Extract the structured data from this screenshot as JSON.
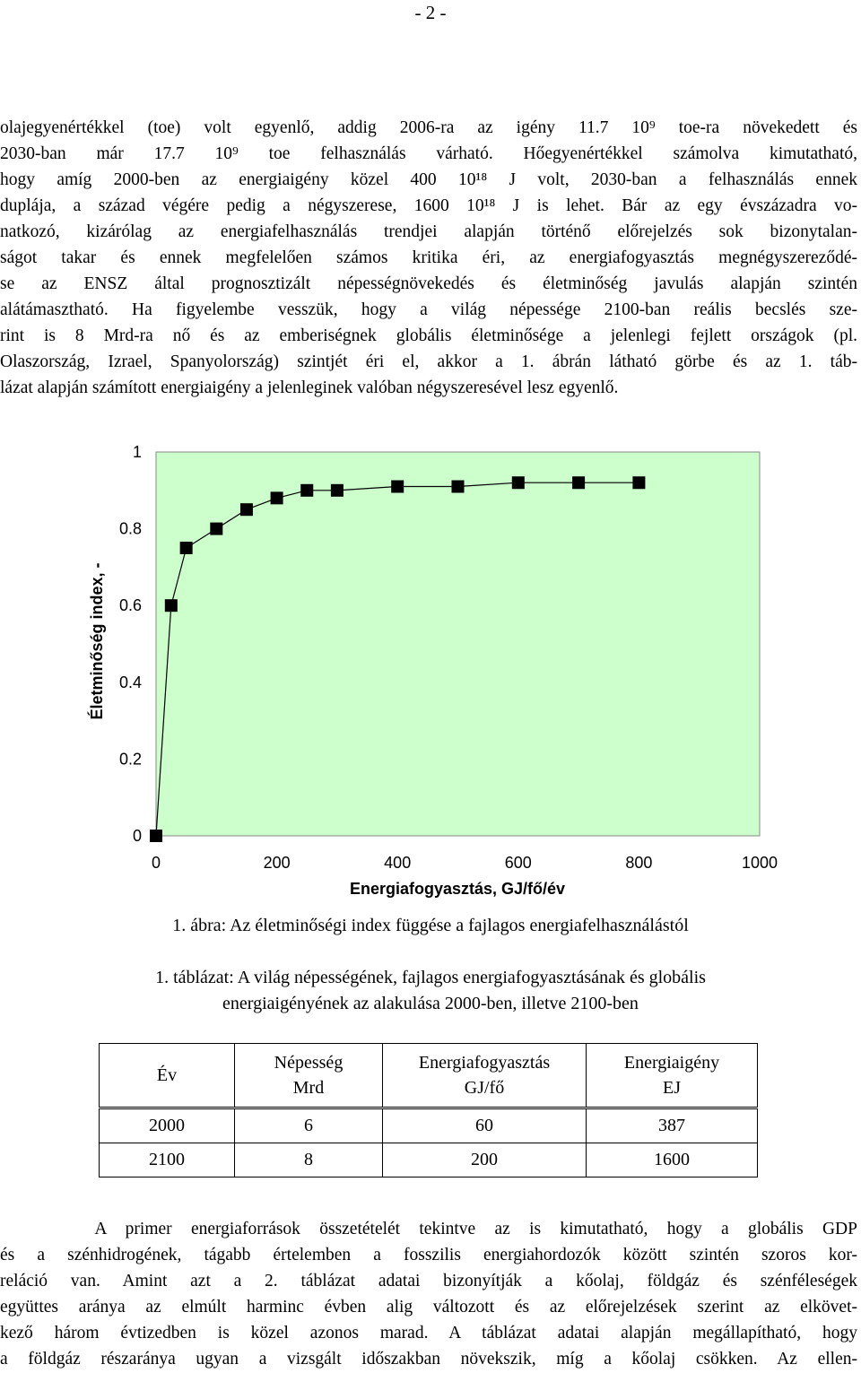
{
  "page_number": "- 2 -",
  "paragraph1": [
    "olajegyenértékkel (toe) volt egyenlő, addig 2006-ra az igény 11.7 10⁹ toe-ra növekedett és",
    "2030-ban már 17.7 10⁹ toe felhasználás várható. Hőegyenértékkel számolva kimutatható,",
    "hogy amíg 2000-ben az energiaigény közel 400 10¹⁸ J volt, 2030-ban a felhasználás ennek",
    "duplája, a század végére pedig a négyszerese, 1600 10¹⁸ J is lehet. Bár az egy évszázadra vo-",
    "natkozó, kizárólag az energiafelhasználás trendjei alapján történő előrejelzés sok bizonytalan-",
    "ságot takar és ennek megfelelően számos kritika éri, az energiafogyasztás megnégyszereződé-",
    "se az ENSZ által prognosztizált népességnövekedés és életminőség javulás alapján szintén",
    "alátámasztható. Ha figyelembe vesszük, hogy a világ népessége 2100-ban reális becslés sze-",
    "rint is 8 Mrd-ra nő és az emberiségnek globális életminősége a jelenlegi fejlett országok (pl.",
    "Olaszország, Izrael, Spanyolország) szintjét éri el, akkor a 1. ábrán látható görbe és az 1. táb-",
    "lázat alapján számított energiaigény a jelenleginek valóban négyszeresével lesz egyenlő."
  ],
  "chart_data": {
    "type": "line",
    "title": "",
    "xlabel": "Energiafogyasztás, GJ/fő/év",
    "ylabel": "Életminőség index, -",
    "xlim": [
      0,
      1000
    ],
    "ylim": [
      0,
      1
    ],
    "x_ticks": [
      "0",
      "200",
      "400",
      "600",
      "800",
      "1000"
    ],
    "y_ticks": [
      "0",
      "0.2",
      "0.4",
      "0.6",
      "0.8",
      "1"
    ],
    "x_tick_values": [
      0,
      200,
      400,
      600,
      800,
      1000
    ],
    "y_tick_values": [
      0,
      0.2,
      0.4,
      0.6,
      0.8,
      1
    ],
    "grid": false,
    "plot_background": "#ccffcc",
    "marker": "square",
    "series": [
      {
        "x": [
          0,
          25,
          50,
          100,
          150,
          200,
          250,
          300,
          400,
          500,
          600,
          700,
          800
        ],
        "y": [
          0.0,
          0.6,
          0.75,
          0.8,
          0.85,
          0.88,
          0.9,
          0.9,
          0.91,
          0.91,
          0.92,
          0.92,
          0.92
        ]
      }
    ]
  },
  "figure_caption": "1. ábra: Az életminőségi index függése a fajlagos energiafelhasználástól",
  "table_caption_line1": "1. táblázat: A világ népességének, fajlagos energiafogyasztásának és globális",
  "table_caption_line2": "energiaigényének az alakulása 2000-ben, illetve 2100-ben",
  "table": {
    "headers": [
      [
        "Év"
      ],
      [
        "Népesség",
        "Mrd"
      ],
      [
        "Energiafogyasztás",
        "GJ/fő"
      ],
      [
        "Energiaigény",
        "EJ"
      ]
    ],
    "rows": [
      [
        "2000",
        "6",
        "60",
        "387"
      ],
      [
        "2100",
        "8",
        "200",
        "1600"
      ]
    ]
  },
  "paragraph2": [
    "     A primer energiaforrások összetételét tekintve az is kimutatható, hogy a globális GDP",
    "és a szénhidrogének, tágabb értelemben a fosszilis energiahordozók között szintén szoros kor-",
    "reláció van. Amint azt a 2. táblázat adatai bizonyítják a kőolaj, földgáz és szénféleségek",
    "együttes aránya az elmúlt harminc évben alig változott és az előrejelzések szerint az elkövet-",
    "kező három évtizedben is közel azonos marad. A táblázat adatai alapján megállapítható, hogy",
    "a földgáz részaránya ugyan a vizsgált időszakban növekszik, míg a kőolaj csökken. Az ellen-"
  ]
}
